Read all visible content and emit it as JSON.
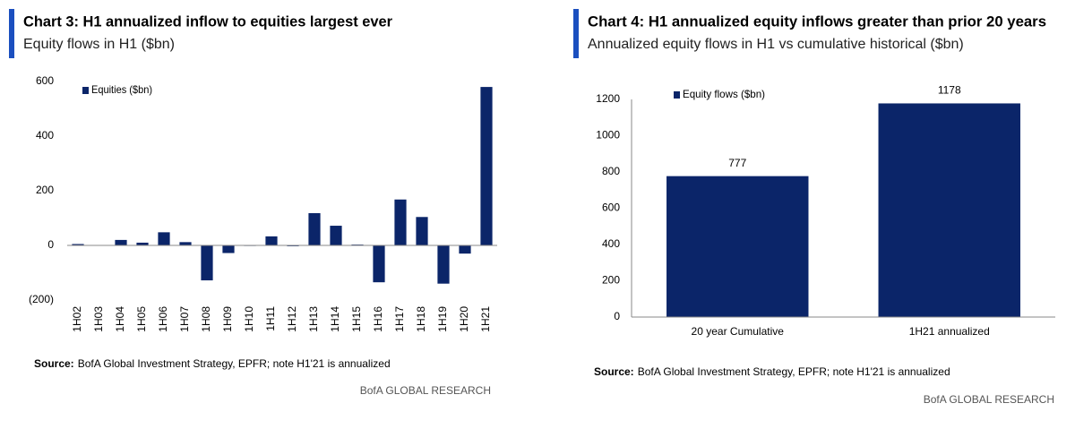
{
  "chart_data": [
    {
      "type": "bar",
      "title": "Chart 3: H1 annualized inflow to equities largest ever",
      "subtitle": "Equity flows in H1 ($bn)",
      "categories": [
        "1H02",
        "1H03",
        "1H04",
        "1H05",
        "1H06",
        "1H07",
        "1H08",
        "1H09",
        "1H10",
        "1H11",
        "1H12",
        "1H13",
        "1H14",
        "1H15",
        "1H16",
        "1H17",
        "1H18",
        "1H19",
        "1H20",
        "1H21"
      ],
      "series": [
        {
          "name": "Equities ($bn)",
          "color": "#0b2569",
          "values": [
            5,
            1,
            20,
            10,
            48,
            12,
            -128,
            -28,
            -2,
            33,
            -3,
            118,
            72,
            3,
            -135,
            168,
            104,
            -140,
            -30,
            580
          ]
        }
      ],
      "ylim": [
        -200,
        600
      ],
      "yticks": [
        600,
        400,
        200,
        0,
        {
          "value": -200,
          "label": "(200)"
        }
      ],
      "negative_tick_color": "#c00000",
      "grid": false,
      "legend": "upper left",
      "source_label": "Source:",
      "source": "BofA Global Investment Strategy, EPFR; note H1'21 is annualized",
      "branding": "BofA GLOBAL RESEARCH"
    },
    {
      "type": "bar",
      "title": "Chart 4: H1 annualized equity inflows greater than prior 20 years",
      "subtitle": "Annualized equity flows in H1 vs cumulative historical ($bn)",
      "categories": [
        "20 year Cumulative",
        "1H21 annualized"
      ],
      "series": [
        {
          "name": "Equity flows ($bn)",
          "color": "#0b2569",
          "values": [
            777,
            1178
          ]
        }
      ],
      "ylim": [
        0,
        1200
      ],
      "yticks": [
        0,
        200,
        400,
        600,
        800,
        1000,
        1200
      ],
      "grid": false,
      "legend": "upper left",
      "source_label": "Source:",
      "source": "BofA Global Investment Strategy, EPFR; note H1'21 is annualized",
      "branding": "BofA GLOBAL RESEARCH"
    }
  ]
}
